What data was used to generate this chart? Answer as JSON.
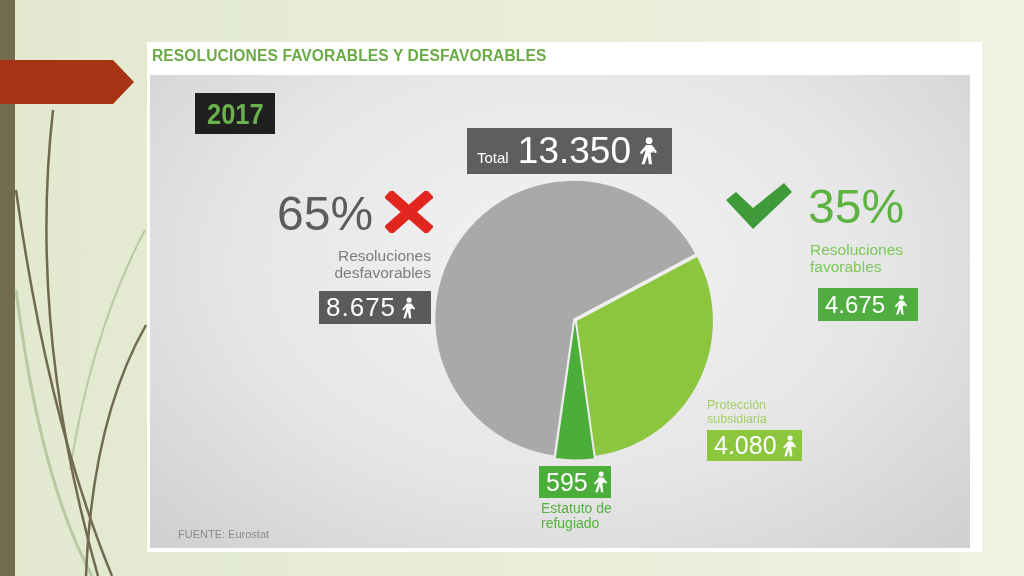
{
  "chart_data": {
    "type": "pie",
    "title": "RESOLUCIONES FAVORABLES Y DESFAVORABLES",
    "categories": [
      "Protección subsidiaria",
      "Estatuto de refugiado",
      "Resoluciones desfavorables"
    ],
    "values": [
      4080,
      595,
      8675
    ],
    "colors": [
      "#8cc63f",
      "#4cae3a",
      "#a9a9a9"
    ],
    "value_labels": [
      "4.080",
      "595",
      "8.675"
    ],
    "annotations": [
      "2017",
      "Total 13.350",
      "65%",
      "35%",
      "Resoluciones favorables",
      "4.675",
      "FUENTE: Eurostat"
    ]
  }
}
